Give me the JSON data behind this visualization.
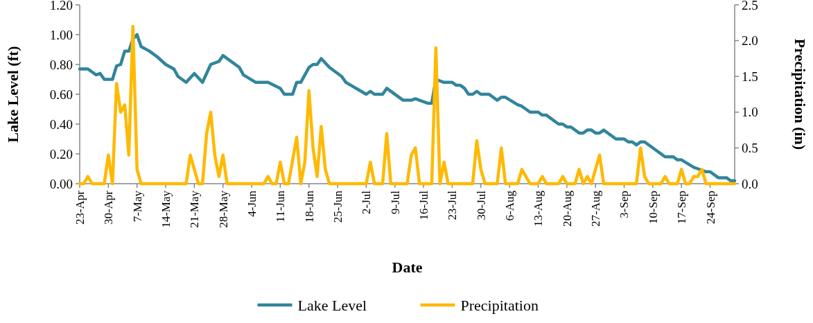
{
  "chart_data": {
    "type": "line",
    "xlabel": "Date",
    "ylabel": "Lake Level (ft)",
    "y2label": "Precipitation (in)",
    "xlim": [
      "--04-23",
      "--09-30"
    ],
    "xticks": [
      {
        "value": "--04-23",
        "label": "23-Apr"
      },
      {
        "value": "--04-30",
        "label": "30-Apr"
      },
      {
        "value": "--05-07",
        "label": "7-May"
      },
      {
        "value": "--05-14",
        "label": "14-May"
      },
      {
        "value": "--05-21",
        "label": "21-May"
      },
      {
        "value": "--05-28",
        "label": "28-May"
      },
      {
        "value": "--06-04",
        "label": "4-Jun"
      },
      {
        "value": "--06-11",
        "label": "11-Jun"
      },
      {
        "value": "--06-18",
        "label": "18-Jun"
      },
      {
        "value": "--06-25",
        "label": "25-Jun"
      },
      {
        "value": "--07-02",
        "label": "2-Jul"
      },
      {
        "value": "--07-09",
        "label": "9-Jul"
      },
      {
        "value": "--07-16",
        "label": "16-Jul"
      },
      {
        "value": "--07-23",
        "label": "23-Jul"
      },
      {
        "value": "--07-30",
        "label": "30-Jul"
      },
      {
        "value": "--08-06",
        "label": "6-Aug"
      },
      {
        "value": "--08-13",
        "label": "13-Aug"
      },
      {
        "value": "--08-20",
        "label": "20-Aug"
      },
      {
        "value": "--08-27",
        "label": "27-Aug"
      },
      {
        "value": "--09-03",
        "label": "3-Sep"
      },
      {
        "value": "--09-10",
        "label": "10-Sep"
      },
      {
        "value": "--09-17",
        "label": "17-Sep"
      },
      {
        "value": "--09-24",
        "label": "24-Sep"
      }
    ],
    "ylim": [
      0,
      1.2
    ],
    "yticks": [
      {
        "value": 0,
        "label": "0.00"
      },
      {
        "value": 0.2,
        "label": "0.20"
      },
      {
        "value": 0.4,
        "label": "0.40"
      },
      {
        "value": 0.6,
        "label": "0.60"
      },
      {
        "value": 0.8,
        "label": "0.80"
      },
      {
        "value": 1,
        "label": "1.00"
      },
      {
        "value": 1.2,
        "label": "1.20"
      }
    ],
    "y2lim": [
      0,
      2.5
    ],
    "y2ticks": [
      {
        "value": 0,
        "label": "0.0"
      },
      {
        "value": 0.5,
        "label": "0.5"
      },
      {
        "value": 1,
        "label": "1.0"
      },
      {
        "value": 1.5,
        "label": "1.5"
      },
      {
        "value": 2,
        "label": "2.0"
      },
      {
        "value": 2.5,
        "label": "2.5"
      }
    ],
    "grid": false,
    "legend": "bottom",
    "marker": "none",
    "line_style": "solid",
    "series": [
      {
        "name": "Lake Level",
        "color": "#31859c",
        "x": [
          "--04-23",
          "--04-25",
          "--04-27",
          "--04-28",
          "--04-29",
          "--05-01",
          "--05-02",
          "--05-03",
          "--05-04",
          "--05-05",
          "--05-06",
          "--05-07",
          "--05-08",
          "--05-10",
          "--05-12",
          "--05-14",
          "--05-16",
          "--05-17",
          "--05-19",
          "--05-21",
          "--05-23",
          "--05-25",
          "--05-27",
          "--05-28",
          "--06-01",
          "--06-02",
          "--06-05",
          "--06-08",
          "--06-11",
          "--06-12",
          "--06-14",
          "--06-15",
          "--06-16",
          "--06-18",
          "--06-19",
          "--06-20",
          "--06-21",
          "--06-23",
          "--06-26",
          "--06-27",
          "--07-02",
          "--07-03",
          "--07-04",
          "--07-06",
          "--07-07",
          "--07-11",
          "--07-13",
          "--07-14",
          "--07-15",
          "--07-17",
          "--07-18",
          "--07-19",
          "--07-21",
          "--07-23",
          "--07-24",
          "--07-25",
          "--07-26",
          "--07-27",
          "--07-28",
          "--07-29",
          "--07-30",
          "--08-01",
          "--08-03",
          "--08-04",
          "--08-05",
          "--08-08",
          "--08-09",
          "--08-11",
          "--08-13",
          "--08-14",
          "--08-15",
          "--08-18",
          "--08-19",
          "--08-20",
          "--08-21",
          "--08-23",
          "--08-24",
          "--08-25",
          "--08-26",
          "--08-27",
          "--08-28",
          "--08-29",
          "--09-01",
          "--09-03",
          "--09-04",
          "--09-05",
          "--09-06",
          "--09-07",
          "--09-08",
          "--09-13",
          "--09-15",
          "--09-16",
          "--09-17",
          "--09-20",
          "--09-21",
          "--09-23",
          "--09-24",
          "--09-26",
          "--09-28",
          "--09-29",
          "--09-30"
        ],
        "values": [
          0.77,
          0.77,
          0.73,
          0.74,
          0.7,
          0.7,
          0.79,
          0.8,
          0.89,
          0.89,
          0.97,
          1.0,
          0.92,
          0.89,
          0.85,
          0.8,
          0.77,
          0.72,
          0.68,
          0.74,
          0.68,
          0.8,
          0.82,
          0.86,
          0.78,
          0.73,
          0.68,
          0.68,
          0.64,
          0.6,
          0.6,
          0.68,
          0.68,
          0.78,
          0.8,
          0.8,
          0.84,
          0.78,
          0.72,
          0.68,
          0.6,
          0.62,
          0.6,
          0.6,
          0.64,
          0.56,
          0.56,
          0.57,
          0.56,
          0.54,
          0.54,
          0.7,
          0.68,
          0.68,
          0.66,
          0.66,
          0.64,
          0.6,
          0.6,
          0.62,
          0.6,
          0.6,
          0.56,
          0.58,
          0.58,
          0.53,
          0.52,
          0.48,
          0.48,
          0.46,
          0.46,
          0.4,
          0.4,
          0.38,
          0.38,
          0.34,
          0.34,
          0.36,
          0.36,
          0.34,
          0.34,
          0.36,
          0.3,
          0.3,
          0.28,
          0.28,
          0.26,
          0.28,
          0.28,
          0.18,
          0.18,
          0.16,
          0.16,
          0.11,
          0.1,
          0.08,
          0.08,
          0.04,
          0.04,
          0.02,
          0.02
        ]
      },
      {
        "name": "Precipitation",
        "color": "#ffb900",
        "axis": "y2",
        "x": [
          "--04-23",
          "--04-24",
          "--04-25",
          "--04-26",
          "--04-29",
          "--04-30",
          "--05-01",
          "--05-02",
          "--05-03",
          "--05-04",
          "--05-05",
          "--05-06",
          "--05-07",
          "--05-08",
          "--05-19",
          "--05-20",
          "--05-22",
          "--05-23",
          "--05-24",
          "--05-25",
          "--05-26",
          "--05-27",
          "--05-28",
          "--05-29",
          "--06-07",
          "--06-08",
          "--06-09",
          "--06-10",
          "--06-11",
          "--06-12",
          "--06-13",
          "--06-15",
          "--06-16",
          "--06-17",
          "--06-18",
          "--06-19",
          "--06-20",
          "--06-21",
          "--06-22",
          "--06-23",
          "--07-02",
          "--07-03",
          "--07-04",
          "--07-06",
          "--07-07",
          "--07-08",
          "--07-12",
          "--07-13",
          "--07-14",
          "--07-15",
          "--07-18",
          "--07-19",
          "--07-20",
          "--07-21",
          "--07-22",
          "--07-28",
          "--07-29",
          "--07-30",
          "--07-31",
          "--08-03",
          "--08-04",
          "--08-05",
          "--08-08",
          "--08-09",
          "--08-10",
          "--08-11",
          "--08-13",
          "--08-14",
          "--08-15",
          "--08-18",
          "--08-19",
          "--08-20",
          "--08-22",
          "--08-23",
          "--08-24",
          "--08-25",
          "--08-26",
          "--08-28",
          "--08-29",
          "--09-06",
          "--09-07",
          "--09-08",
          "--09-09",
          "--09-12",
          "--09-13",
          "--09-14",
          "--09-16",
          "--09-17",
          "--09-18",
          "--09-19",
          "--09-20",
          "--09-21",
          "--09-22",
          "--09-23",
          "--09-30"
        ],
        "values": [
          0,
          0,
          0.1,
          0,
          0,
          0.4,
          0,
          1.4,
          1.0,
          1.1,
          0.4,
          2.2,
          0.2,
          0,
          0,
          0.4,
          0,
          0,
          0.7,
          1.0,
          0.4,
          0.1,
          0.4,
          0,
          0,
          0.1,
          0,
          0,
          0.3,
          0,
          0,
          0.65,
          0,
          0.3,
          1.3,
          0.5,
          0.1,
          0.8,
          0.2,
          0,
          0,
          0.3,
          0,
          0,
          0.7,
          0,
          0,
          0.4,
          0.5,
          0,
          0,
          1.9,
          0,
          0.3,
          0,
          0,
          0.6,
          0.2,
          0,
          0,
          0.5,
          0,
          0,
          0.2,
          0.1,
          0,
          0,
          0.1,
          0,
          0,
          0.1,
          0,
          0,
          0.2,
          0,
          0.1,
          0,
          0.4,
          0,
          0,
          0.5,
          0.1,
          0,
          0,
          0.1,
          0,
          0,
          0.2,
          0,
          0,
          0.1,
          0.1,
          0.2,
          0,
          0
        ]
      }
    ]
  }
}
